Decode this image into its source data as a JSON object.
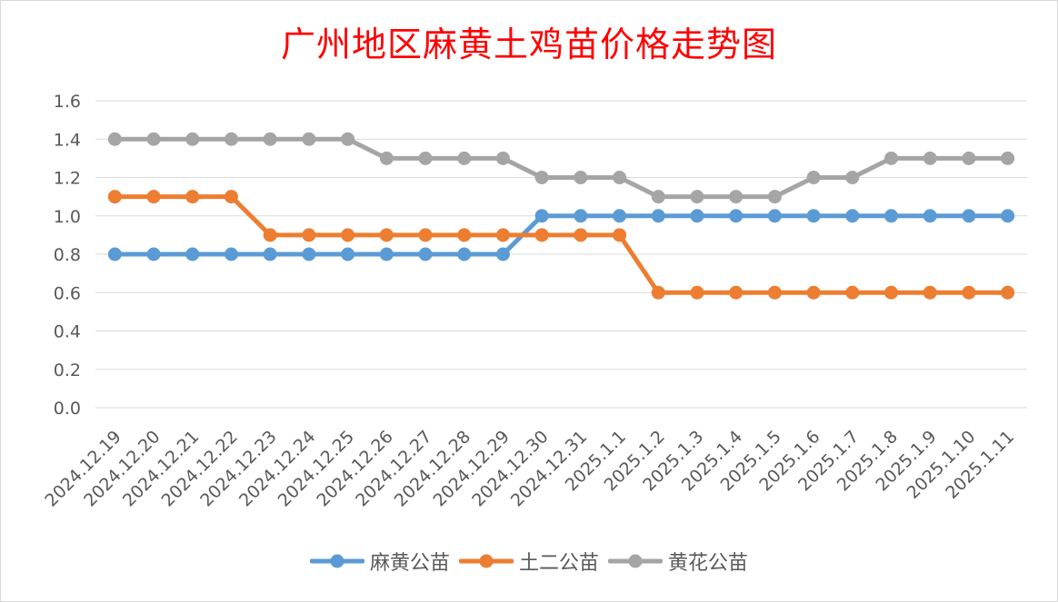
{
  "chart_data": {
    "type": "line",
    "title": "广州地区麻黄土鸡苗价格走势图",
    "xlabel": "",
    "ylabel": "",
    "ylim": [
      0,
      1.6
    ],
    "yticks": [
      "0.0",
      "0.2",
      "0.4",
      "0.6",
      "0.8",
      "1.0",
      "1.2",
      "1.4",
      "1.6"
    ],
    "grid": true,
    "legend_position": "bottom",
    "categories": [
      "2024.12.19",
      "2024.12.20",
      "2024.12.21",
      "2024.12.22",
      "2024.12.23",
      "2024.12.24",
      "2024.12.25",
      "2024.12.26",
      "2024.12.27",
      "2024.12.28",
      "2024.12.29",
      "2024.12.30",
      "2024.12.31",
      "2025.1.1",
      "2025.1.2",
      "2025.1.3",
      "2025.1.4",
      "2025.1.5",
      "2025.1.6",
      "2025.1.7",
      "2025.1.8",
      "2025.1.9",
      "2025.1.10",
      "2025.1.11"
    ],
    "series": [
      {
        "name": "麻黄公苗",
        "color": "#5b9bd5",
        "values": [
          0.8,
          0.8,
          0.8,
          0.8,
          0.8,
          0.8,
          0.8,
          0.8,
          0.8,
          0.8,
          0.8,
          1.0,
          1.0,
          1.0,
          1.0,
          1.0,
          1.0,
          1.0,
          1.0,
          1.0,
          1.0,
          1.0,
          1.0,
          1.0
        ]
      },
      {
        "name": "土二公苗",
        "color": "#ed7d31",
        "values": [
          1.1,
          1.1,
          1.1,
          1.1,
          0.9,
          0.9,
          0.9,
          0.9,
          0.9,
          0.9,
          0.9,
          0.9,
          0.9,
          0.9,
          0.6,
          0.6,
          0.6,
          0.6,
          0.6,
          0.6,
          0.6,
          0.6,
          0.6,
          0.6
        ]
      },
      {
        "name": "黄花公苗",
        "color": "#a5a5a5",
        "values": [
          1.4,
          1.4,
          1.4,
          1.4,
          1.4,
          1.4,
          1.4,
          1.3,
          1.3,
          1.3,
          1.3,
          1.2,
          1.2,
          1.2,
          1.1,
          1.1,
          1.1,
          1.1,
          1.2,
          1.2,
          1.3,
          1.3,
          1.3,
          1.3
        ]
      }
    ]
  },
  "colors": {
    "title": "#ff0000",
    "grid": "#d9d9d9",
    "axis_text": "#595959",
    "frame_border": "#d9d9d9"
  }
}
